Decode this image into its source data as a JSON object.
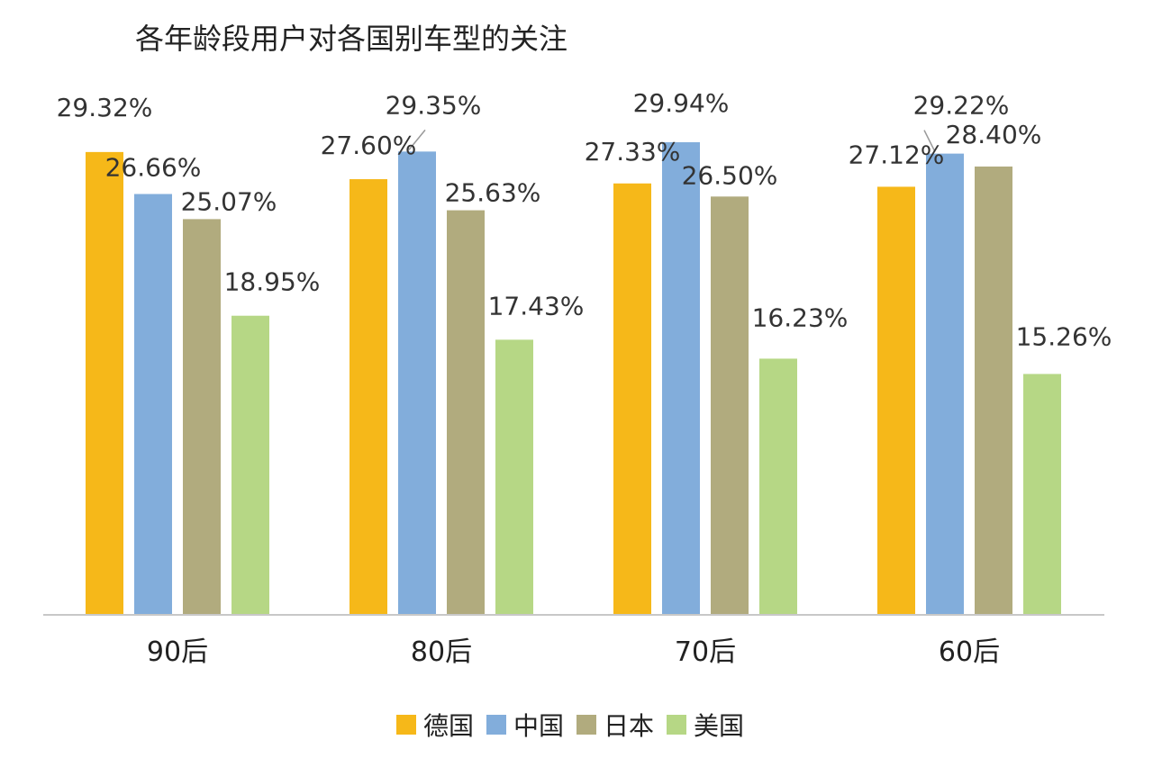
{
  "chart_data": {
    "type": "bar",
    "title": "各年龄段用户对各国别车型的关注",
    "xlabel": "",
    "ylabel": "",
    "categories": [
      "90后",
      "80后",
      "70后",
      "60后"
    ],
    "series": [
      {
        "name": "德国",
        "color": "#F6B819",
        "values": [
          29.32,
          27.6,
          27.33,
          27.12
        ],
        "labels": [
          "29.32%",
          "27.60%",
          "27.33%",
          "27.12%"
        ]
      },
      {
        "name": "中国",
        "color": "#82ADDB",
        "values": [
          26.66,
          29.35,
          29.94,
          29.22
        ],
        "labels": [
          "26.66%",
          "29.35%",
          "29.94%",
          "29.22%"
        ]
      },
      {
        "name": "日本",
        "color": "#B1AB7E",
        "values": [
          25.07,
          25.63,
          26.5,
          28.4
        ],
        "labels": [
          "25.07%",
          "25.63%",
          "26.50%",
          "28.40%"
        ]
      },
      {
        "name": "美国",
        "color": "#B6D785",
        "values": [
          18.95,
          17.43,
          16.23,
          15.26
        ],
        "labels": [
          "18.95%",
          "17.43%",
          "16.23%",
          "15.26%"
        ]
      }
    ],
    "ylim": [
      0,
      29.94
    ],
    "grid": false,
    "legend": "bottom"
  }
}
